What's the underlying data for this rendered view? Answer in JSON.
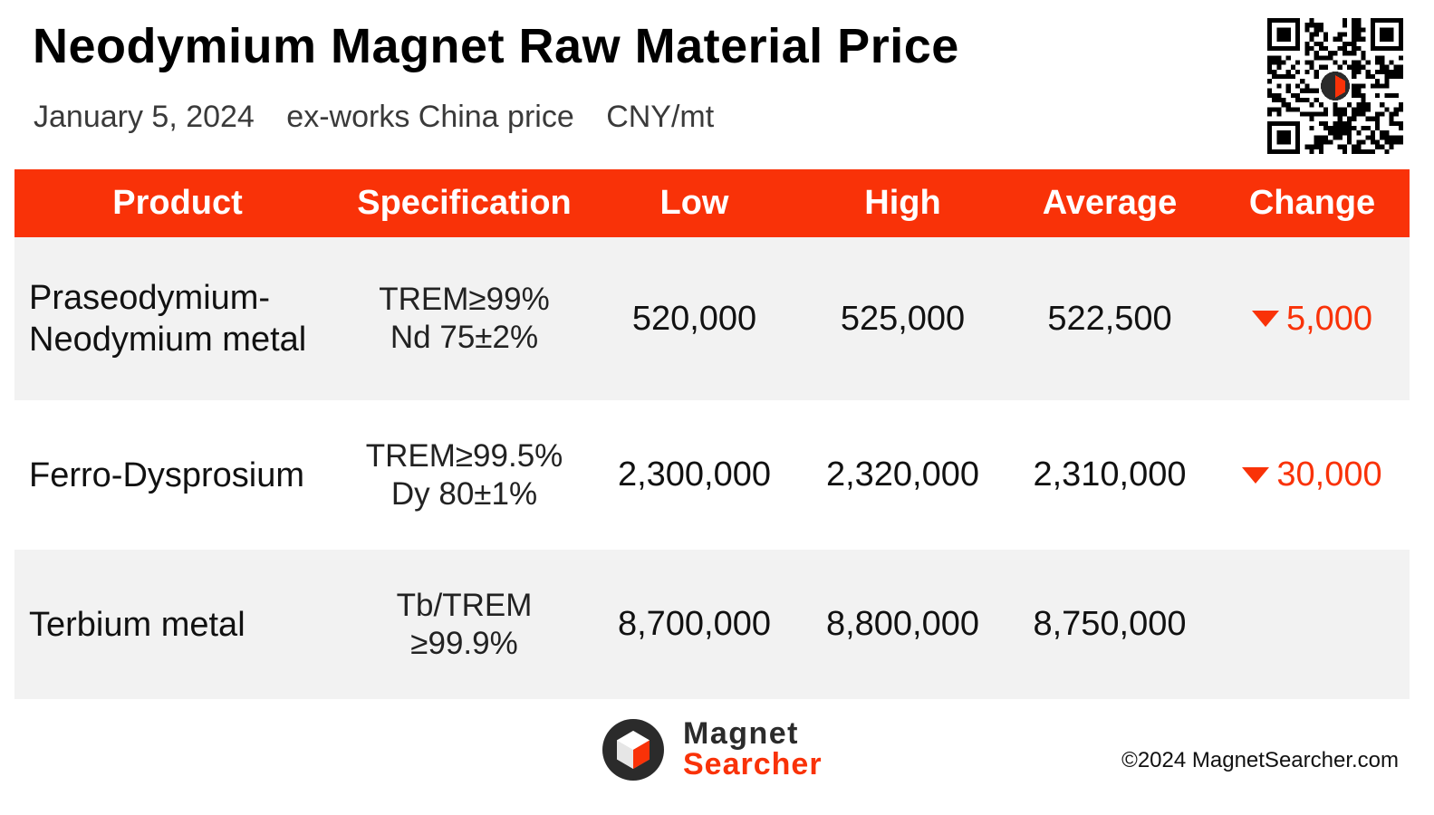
{
  "header": {
    "title": "Neodymium Magnet Raw Material Price",
    "date": "January 5, 2024",
    "basis": "ex-works China price",
    "unit": "CNY/mt"
  },
  "table": {
    "columns": [
      "Product",
      "Specification",
      "Low",
      "High",
      "Average",
      "Change"
    ],
    "rows": [
      {
        "product": [
          "Praseodymium-",
          "Neodymium metal"
        ],
        "spec": [
          "TREM≥99%",
          "Nd 75±2%"
        ],
        "low": "520,000",
        "high": "525,000",
        "average": "522,500",
        "change": "5,000",
        "change_direction": "down"
      },
      {
        "product": [
          "Ferro-Dysprosium"
        ],
        "spec": [
          "TREM≥99.5%",
          "Dy 80±1%"
        ],
        "low": "2,300,000",
        "high": "2,320,000",
        "average": "2,310,000",
        "change": "30,000",
        "change_direction": "down"
      },
      {
        "product": [
          "Terbium metal"
        ],
        "spec": [
          "Tb/TREM",
          "≥99.9%"
        ],
        "low": "8,700,000",
        "high": "8,800,000",
        "average": "8,750,000",
        "change": "",
        "change_direction": "none"
      }
    ]
  },
  "logo": {
    "line1": "Magnet",
    "line2": "Searcher"
  },
  "footer": {
    "copyright": "©2024 MagnetSearcher.com"
  },
  "colors": {
    "accent": "#f93208",
    "row_alt": "#f2f2f2"
  },
  "icons": {
    "qr": "qr-code-icon",
    "logo": "magnet-searcher-logo-icon",
    "down": "triangle-down-icon"
  }
}
